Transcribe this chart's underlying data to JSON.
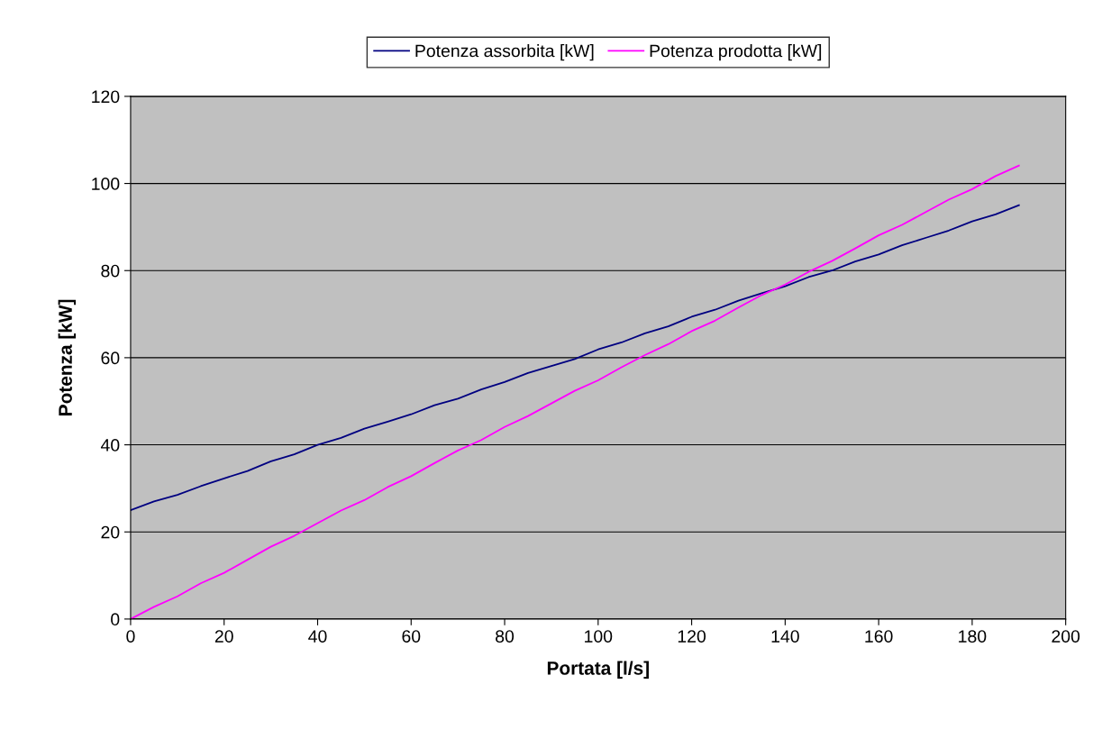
{
  "chart_data": {
    "type": "line",
    "xlabel": "Portata [l/s]",
    "ylabel": "Potenza [kW]",
    "x": [
      0,
      5,
      10,
      15,
      20,
      25,
      30,
      35,
      40,
      45,
      50,
      55,
      60,
      65,
      70,
      75,
      80,
      85,
      90,
      95,
      100,
      105,
      110,
      115,
      120,
      125,
      130,
      135,
      140,
      145,
      150,
      155,
      160,
      165,
      170,
      175,
      180,
      185,
      190
    ],
    "series": [
      {
        "name": "Potenza assorbita [kW]",
        "color": "#000080",
        "values": [
          25,
          27,
          28.5,
          30.5,
          32.3,
          34,
          36.2,
          37.8,
          40,
          41.6,
          43.7,
          45.3,
          47,
          49.1,
          50.6,
          52.7,
          54.4,
          56.5,
          58.1,
          59.7,
          61.9,
          63.5,
          65.6,
          67.2,
          69.4,
          71,
          73.1,
          74.8,
          76.4,
          78.5,
          80,
          82.1,
          83.7,
          85.8,
          87.5,
          89.2,
          91.3,
          92.9,
          95
        ]
      },
      {
        "name": "Potenza prodotta [kW]",
        "color": "#ff00ff",
        "values": [
          0,
          2.8,
          5.2,
          8.2,
          10.6,
          13.6,
          16.6,
          19.1,
          22,
          24.9,
          27.3,
          30.3,
          32.8,
          35.8,
          38.7,
          41.1,
          44.1,
          46.6,
          49.5,
          52.4,
          54.8,
          57.8,
          60.6,
          63.1,
          66.1,
          68.5,
          71.5,
          74.4,
          76.8,
          79.7,
          82.2,
          85.1,
          88.1,
          90.5,
          93.4,
          96.3,
          98.7,
          101.7,
          104.1
        ]
      }
    ],
    "xlim": [
      0,
      200
    ],
    "xticks": [
      0,
      20,
      40,
      60,
      80,
      100,
      120,
      140,
      160,
      180,
      200
    ],
    "ylim": [
      0,
      120
    ],
    "yticks": [
      0,
      20,
      40,
      60,
      80,
      100,
      120
    ],
    "grid": "y",
    "legend": "top",
    "marker": "none",
    "line_style": "solid"
  }
}
